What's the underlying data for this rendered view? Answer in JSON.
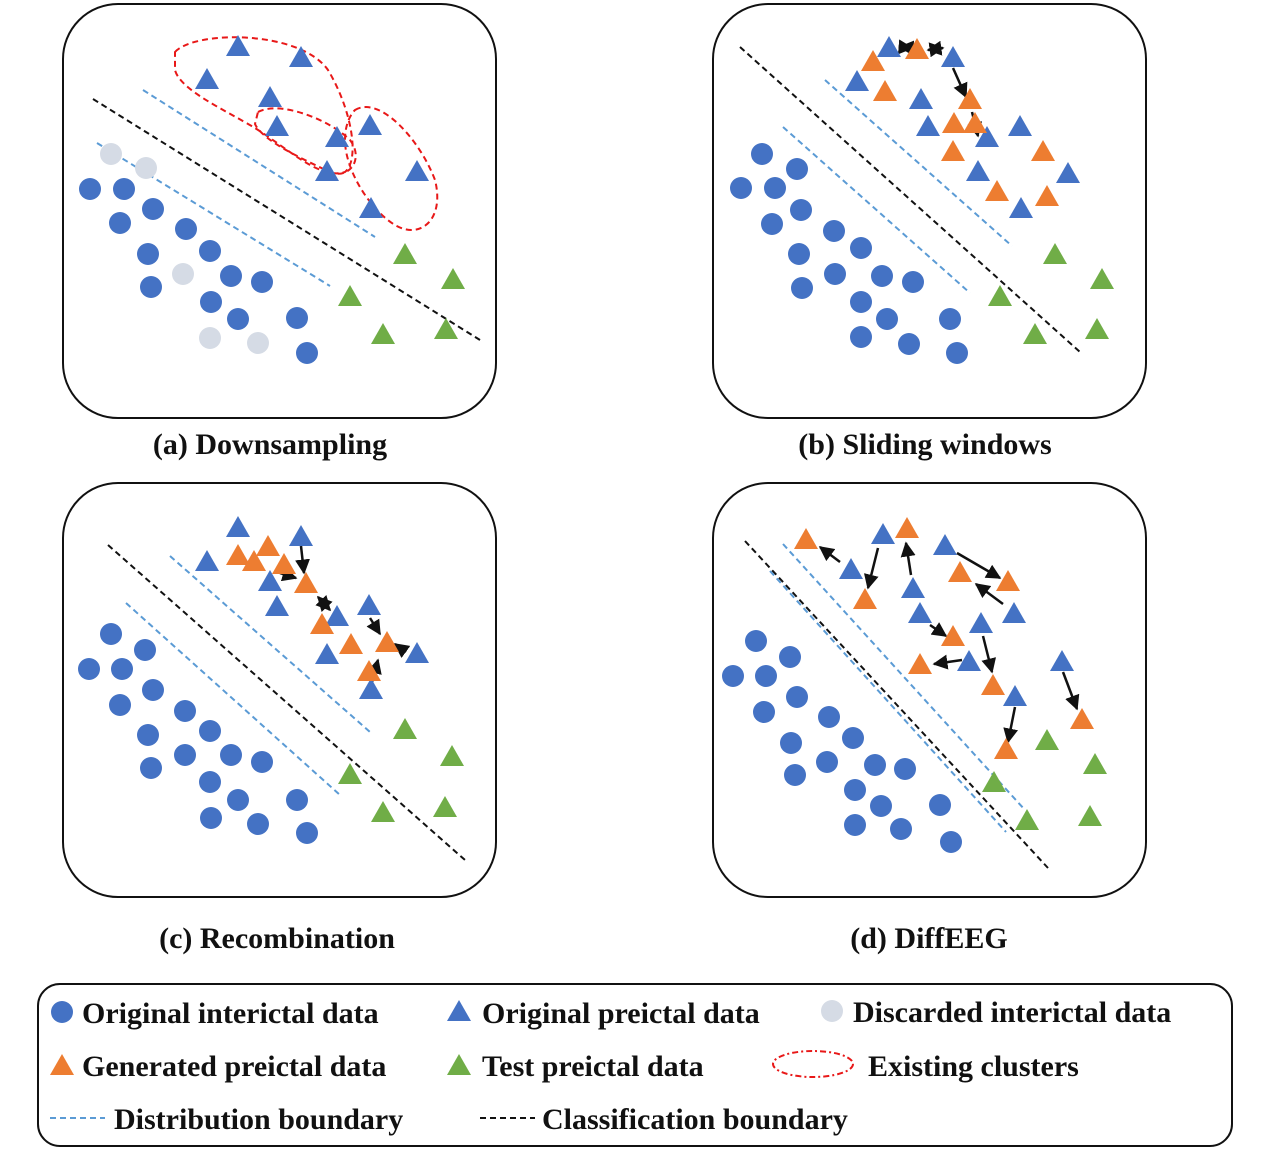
{
  "colors": {
    "interictal": "#4472C4",
    "preictal": "#4472C4",
    "discarded": "#D5DBE5",
    "generated": "#ED7D31",
    "test": "#70AD47",
    "cluster": "#E81818",
    "distribution": "#5B9BD5",
    "classification": "#111111"
  },
  "panels": [
    {
      "id": "a",
      "caption": "(a) Downsampling"
    },
    {
      "id": "b",
      "caption": "(b) Sliding windows"
    },
    {
      "id": "c",
      "caption": "(c) Recombination"
    },
    {
      "id": "d",
      "caption": "(d) DiffEEG"
    }
  ],
  "legend": {
    "original_interictal": "Original interictal data",
    "original_preictal": "Original preictal data",
    "discarded_interictal": "Discarded interictal data",
    "generated_preictal": "Generated preictal data",
    "test_preictal": "Test preictal data",
    "existing_clusters": "Existing clusters",
    "distribution_boundary": "Distribution boundary",
    "classification_boundary": "Classification boundary"
  }
}
